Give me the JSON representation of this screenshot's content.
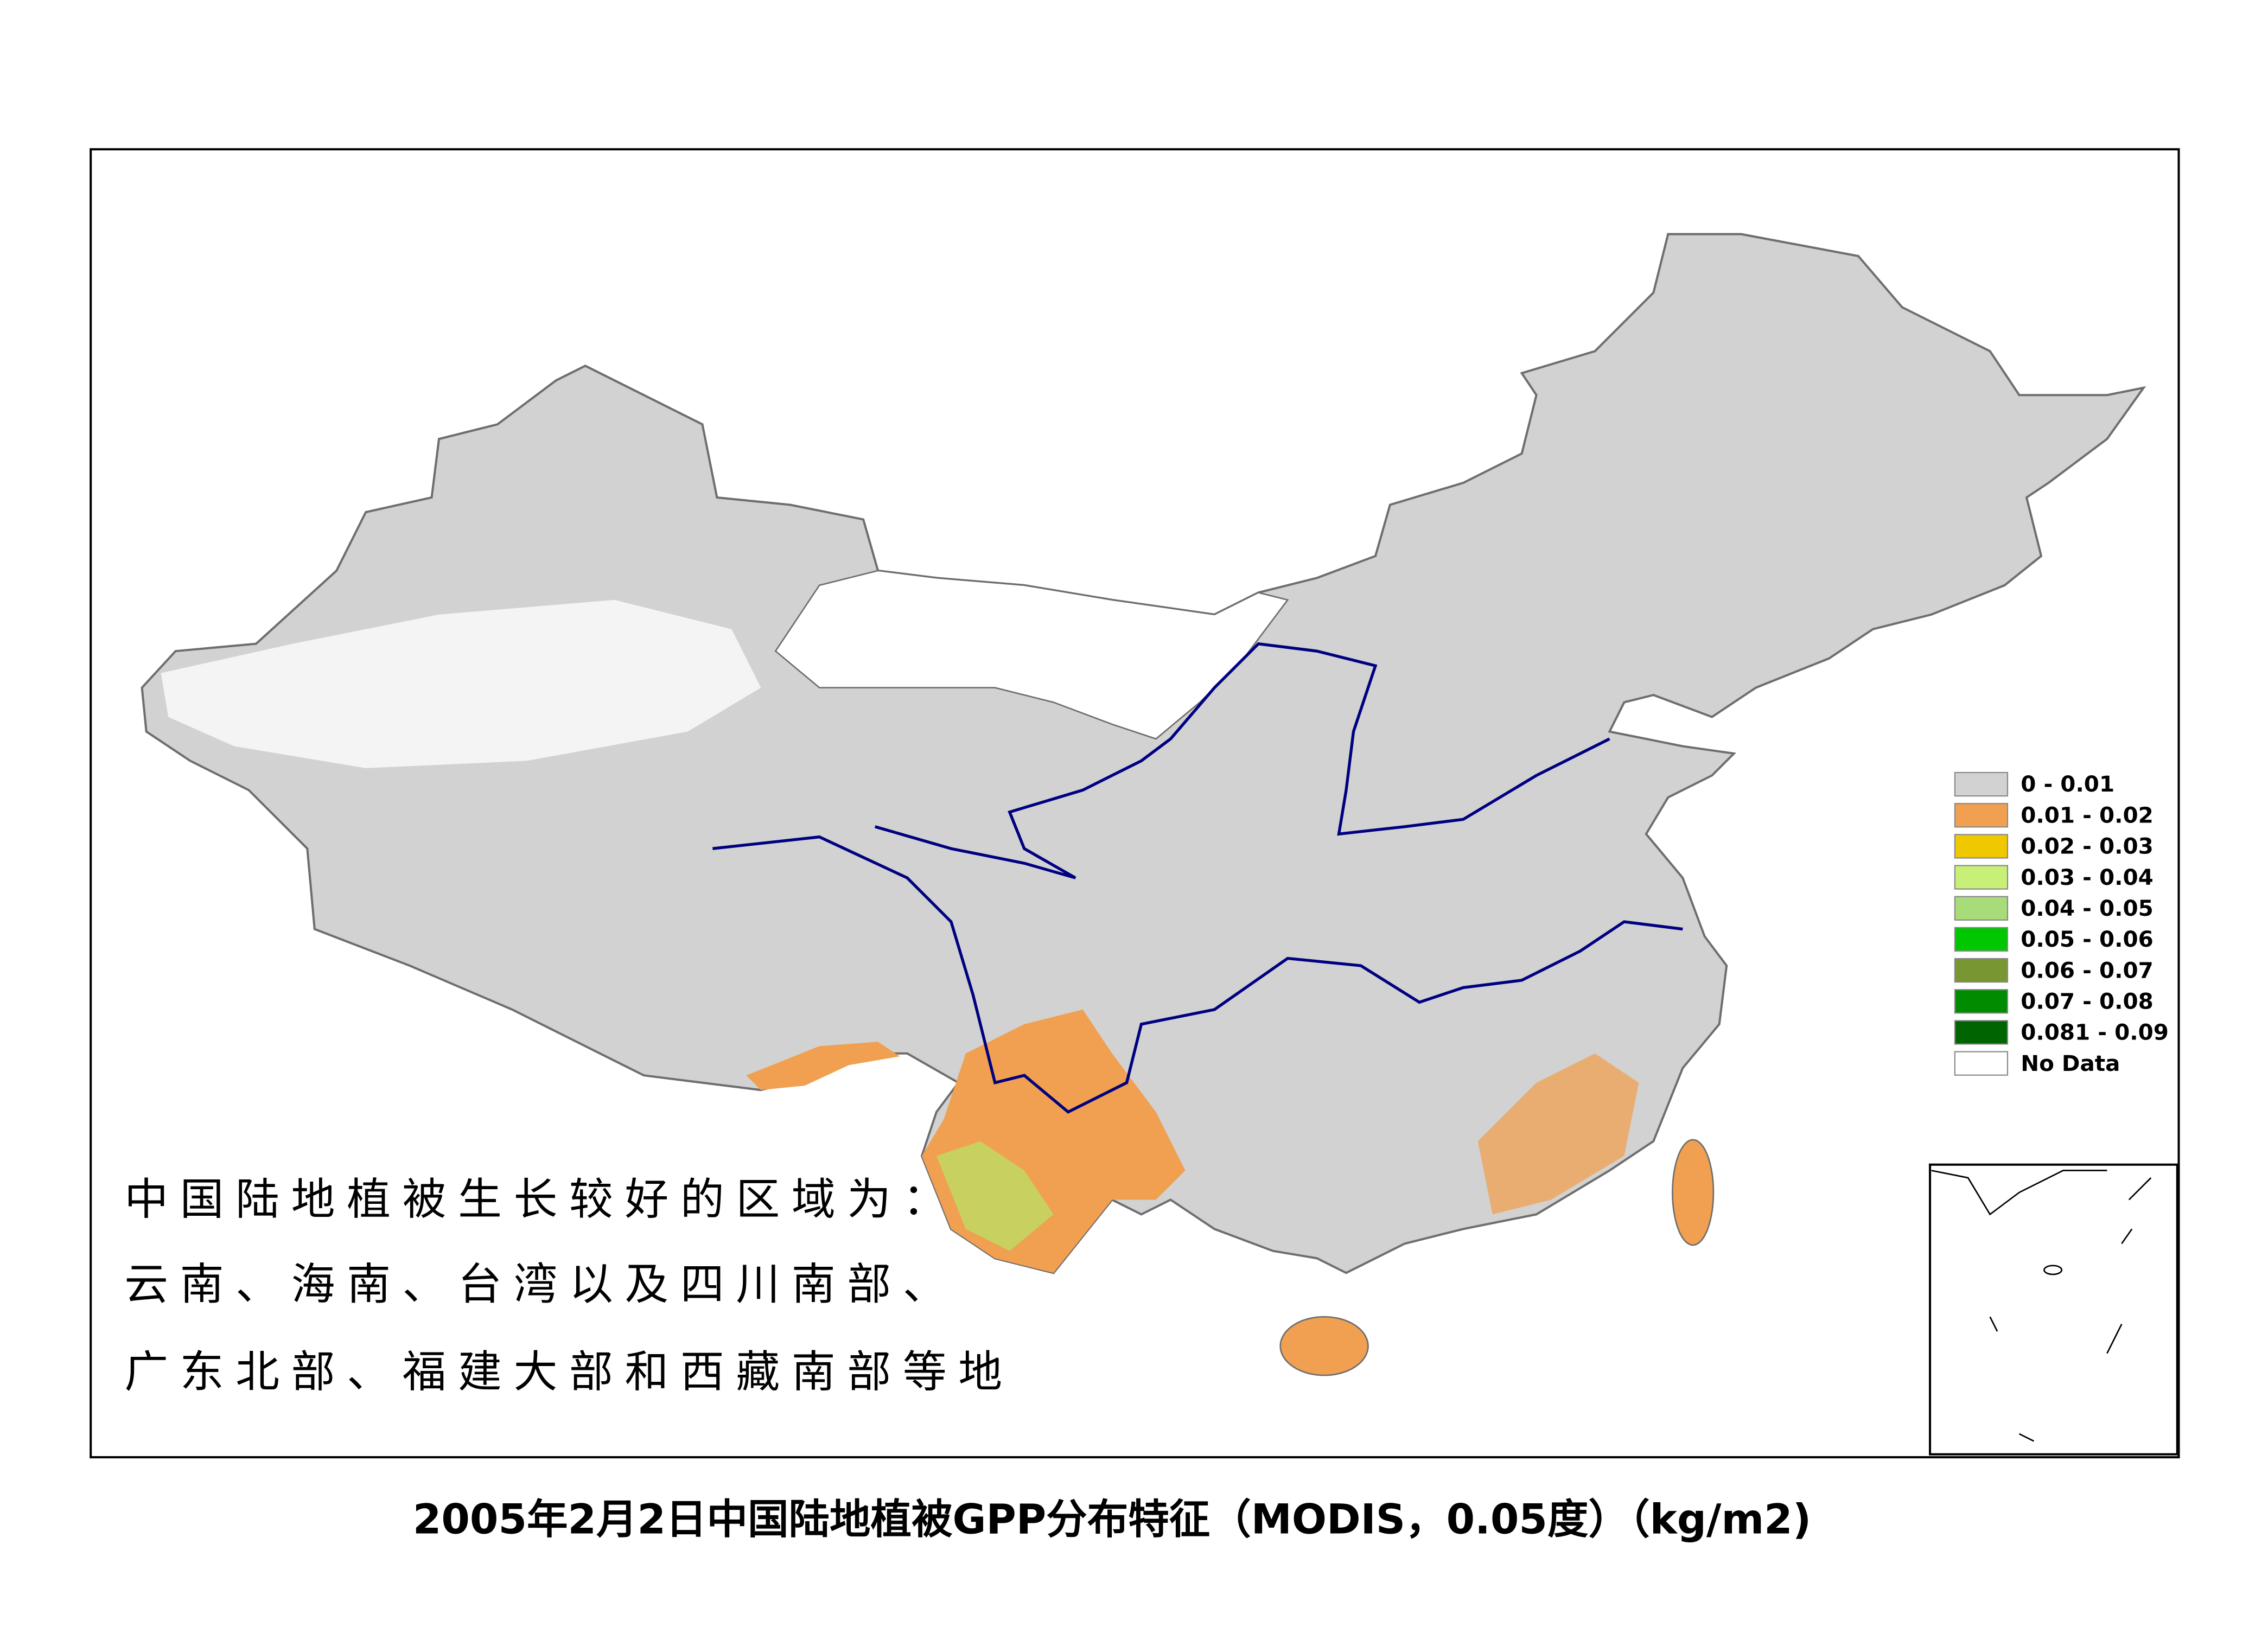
{
  "title": "2005年2月2日中国陆地植被GPP分布特征（MODIS，0.05度）（kg/m2)",
  "annotation": [
    "中国陆地植被生长较好的区域为：",
    "云南、海南、台湾以及四川南部、",
    "广东北部、福建大部和西藏南部等地"
  ],
  "legend": [
    {
      "label": "0 - 0.01",
      "color": "#d2d2d2"
    },
    {
      "label": "0.01 - 0.02",
      "color": "#f0a050"
    },
    {
      "label": "0.02 - 0.03",
      "color": "#f0c800"
    },
    {
      "label": "0.03 - 0.04",
      "color": "#c8f078"
    },
    {
      "label": "0.04 - 0.05",
      "color": "#a8dc78"
    },
    {
      "label": "0.05 - 0.06",
      "color": "#00c800"
    },
    {
      "label": "0.06 - 0.07",
      "color": "#789632"
    },
    {
      "label": "0.07 - 0.08",
      "color": "#008c00"
    },
    {
      "label": "0.081 - 0.09",
      "color": "#006400"
    },
    {
      "label": "No Data",
      "color": "#ffffff"
    }
  ]
}
